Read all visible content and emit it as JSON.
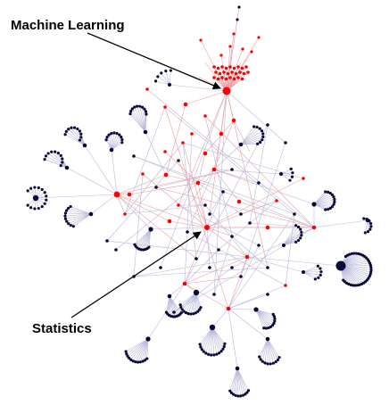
{
  "labels": {
    "machine_learning": "Machine Learning",
    "statistics": "Statistics"
  },
  "colors": {
    "highlight_node": "#ff0000",
    "highlight_edge": "#e8a0a8",
    "default_node": "#0a0a3a",
    "default_edge": "#b8b8d8",
    "arrow": "#000000"
  }
}
